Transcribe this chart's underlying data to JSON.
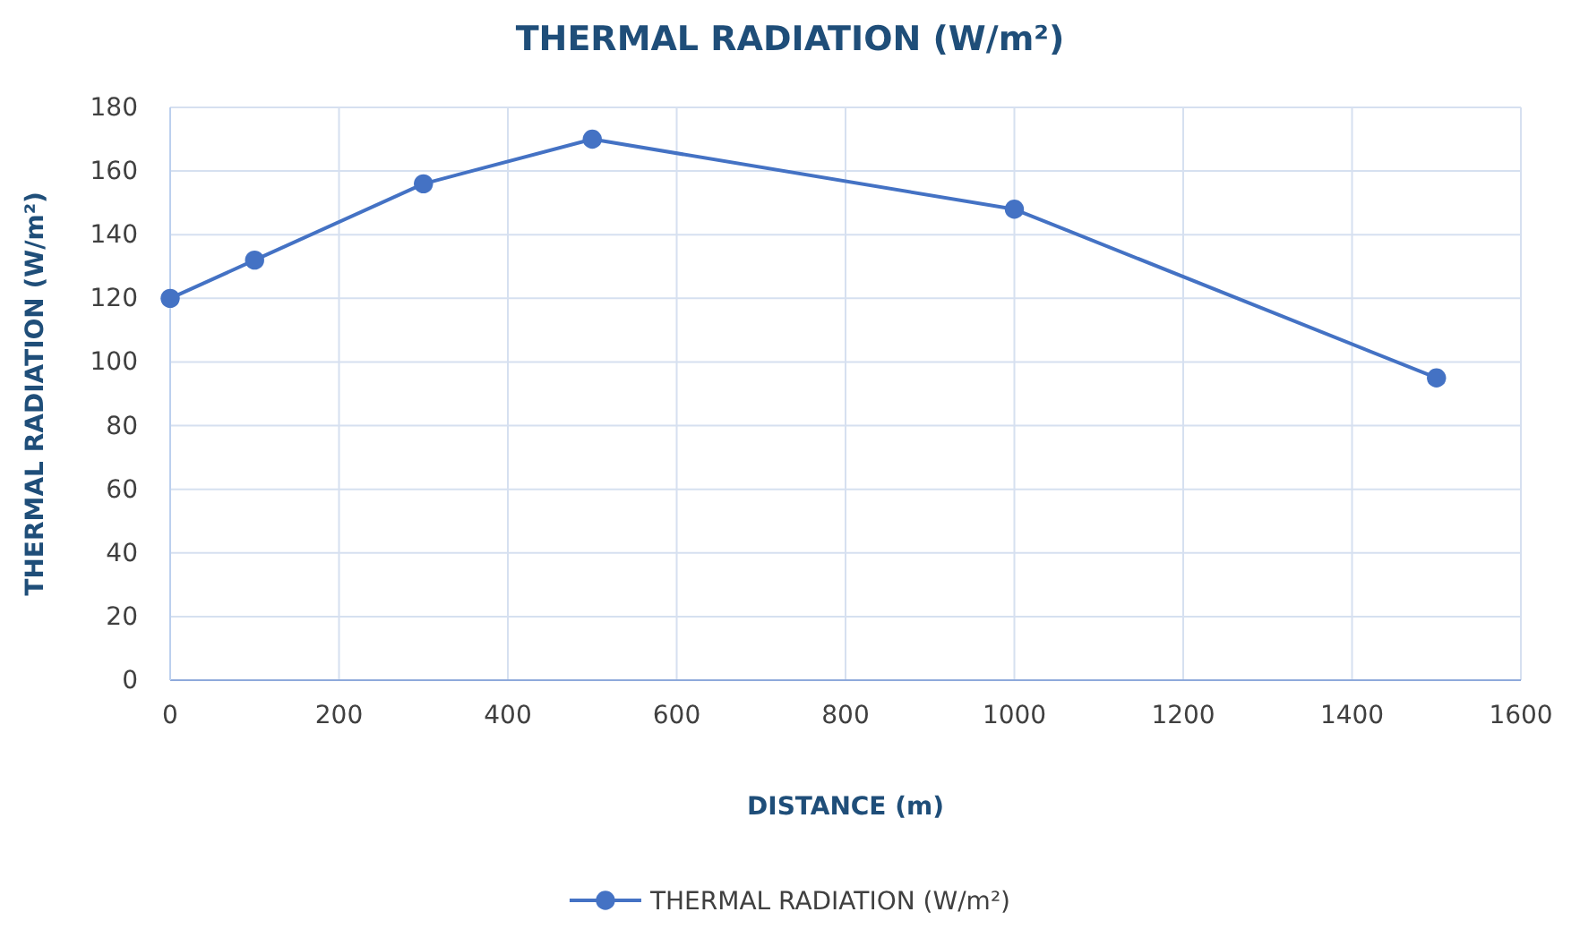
{
  "chart_data": {
    "type": "line",
    "title": "THERMAL RADIATION (W/m²)",
    "xlabel": "DISTANCE (m)",
    "ylabel": "THERMAL RADIATION (W/m²)",
    "x": [
      0,
      100,
      300,
      500,
      1000,
      1500
    ],
    "series": [
      {
        "name": "THERMAL RADIATION (W/m²)",
        "color": "#4472c4",
        "values": [
          120,
          132,
          156,
          170,
          148,
          95
        ]
      }
    ],
    "xlim": [
      0,
      1600
    ],
    "xticks": [
      0,
      200,
      400,
      600,
      800,
      1000,
      1200,
      1400,
      1600
    ],
    "ylim": [
      0,
      180
    ],
    "yticks": [
      0,
      20,
      40,
      60,
      80,
      100,
      120,
      140,
      160,
      180
    ],
    "grid": true,
    "legend": "bottom",
    "marker": "circle",
    "line_style": "solid"
  }
}
